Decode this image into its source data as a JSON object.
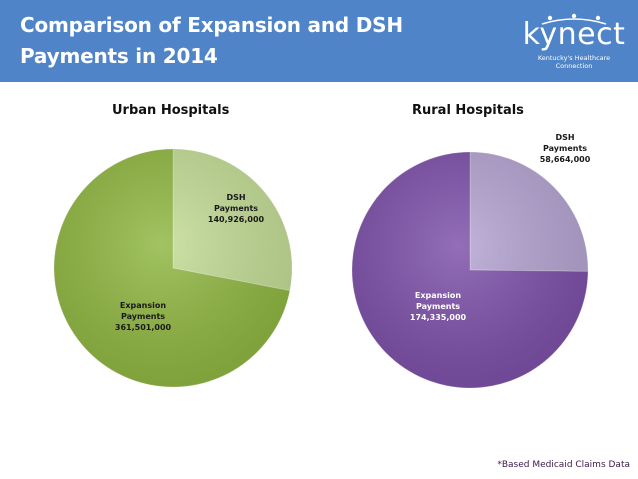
{
  "header": {
    "title": "Comparison of Expansion and DSH Payments in 2014",
    "logo_text": "kynect",
    "logo_tagline": "Kentucky's Healthcare Connection",
    "background_color": "#4f84c8"
  },
  "chart_data": [
    {
      "type": "pie",
      "title": "Urban Hospitals",
      "slices": [
        {
          "label": "DSH Payments",
          "value": 140926000,
          "value_label": "140,926,000",
          "color": "#c3dc95"
        },
        {
          "label": "Expansion Payments",
          "value": 361501000,
          "value_label": "361,501,000",
          "color": "#8fb640"
        }
      ]
    },
    {
      "type": "pie",
      "title": "Rural Hospitals",
      "slices": [
        {
          "label": "DSH Payments",
          "value": 58664000,
          "value_label": "58,664,000",
          "color": "#b4a3d1"
        },
        {
          "label": "Expansion Payments",
          "value": 174335000,
          "value_label": "174,335,000",
          "color": "#7c4fa8"
        }
      ]
    }
  ],
  "footnote": "*Based Medicaid Claims Data"
}
